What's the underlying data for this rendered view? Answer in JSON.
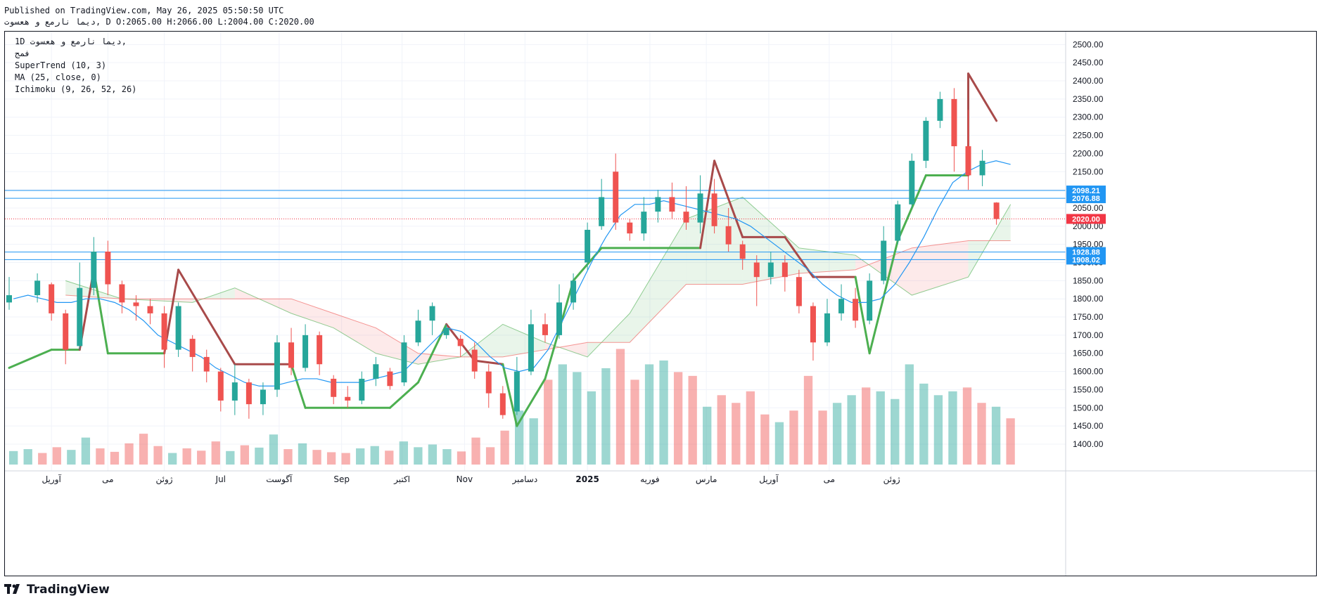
{
  "header": {
    "published_line": "Published on TradingView.com, May 26, 2025 05:50:50 UTC",
    "ohlc_line": "دیما نارمع و هعسوت, D O:2065.00 H:2066.00 L:2004.00 C:2020.00"
  },
  "legend": {
    "symbol_line": "1D دیما نارمع و هعسوت,",
    "exchange": "فمج",
    "indicators": [
      "SuperTrend (10, 3)",
      "MA (25, close, 0)",
      "Ichimoku (9, 26, 52, 26)"
    ]
  },
  "brand": {
    "name": "TradingView",
    "icon": "tradingview-logo-icon"
  },
  "colors": {
    "up": "#26a69a",
    "down": "#ef5350",
    "supertrend_up": "#4caf50",
    "supertrend_down": "#a84a4a",
    "ma": "#2196f3",
    "hline": "#2196f3",
    "last_price": "#f23645",
    "cloud_green": "#4caf50",
    "cloud_red": "#ef5350"
  },
  "chart_data": {
    "type": "candlestick",
    "title": "",
    "ylim": [
      1340,
      2520
    ],
    "y_ticks": [
      1400,
      1450,
      1500,
      1550,
      1600,
      1650,
      1700,
      1750,
      1800,
      1850,
      1900,
      1950,
      2000,
      2050,
      2100,
      2150,
      2200,
      2250,
      2300,
      2350,
      2400,
      2450,
      2500
    ],
    "x_ticks": [
      "آوریل",
      "می",
      "ژوئن",
      "Jul",
      "آگوست",
      "Sep",
      "اکتبر",
      "Nov",
      "دسامبر",
      "2025",
      "فوریه",
      "مارس",
      "آوریل",
      "می",
      "ژوئن"
    ],
    "horizontal_lines": [
      2098.21,
      2076.88,
      1928.88,
      1908.02
    ],
    "price_labels": [
      "2098.21",
      "2076.88",
      "1928.88",
      "1908.02"
    ],
    "last_price": 2020,
    "last_price_label": "2020.00",
    "candles": [
      {
        "x": "2024-03-20",
        "o": 1790,
        "c": 1810,
        "h": 1860,
        "l": 1770
      },
      {
        "x": "2024-04-03",
        "o": 1810,
        "c": 1850,
        "h": 1870,
        "l": 1790
      },
      {
        "x": "2024-04-10",
        "o": 1840,
        "c": 1760,
        "h": 1845,
        "l": 1740
      },
      {
        "x": "2024-04-17",
        "o": 1760,
        "c": 1660,
        "h": 1770,
        "l": 1620
      },
      {
        "x": "2024-04-24",
        "o": 1670,
        "c": 1830,
        "h": 1900,
        "l": 1660
      },
      {
        "x": "2024-05-01",
        "o": 1830,
        "c": 1930,
        "h": 1970,
        "l": 1810
      },
      {
        "x": "2024-05-08",
        "o": 1930,
        "c": 1840,
        "h": 1960,
        "l": 1810
      },
      {
        "x": "2024-05-15",
        "o": 1840,
        "c": 1790,
        "h": 1850,
        "l": 1760
      },
      {
        "x": "2024-05-22",
        "o": 1790,
        "c": 1780,
        "h": 1810,
        "l": 1740
      },
      {
        "x": "2024-05-29",
        "o": 1780,
        "c": 1760,
        "h": 1800,
        "l": 1730
      },
      {
        "x": "2024-06-05",
        "o": 1760,
        "c": 1660,
        "h": 1780,
        "l": 1610
      },
      {
        "x": "2024-06-12",
        "o": 1660,
        "c": 1780,
        "h": 1790,
        "l": 1640
      },
      {
        "x": "2024-06-19",
        "o": 1690,
        "c": 1640,
        "h": 1700,
        "l": 1600
      },
      {
        "x": "2024-06-26",
        "o": 1640,
        "c": 1600,
        "h": 1660,
        "l": 1570
      },
      {
        "x": "2024-07-03",
        "o": 1600,
        "c": 1520,
        "h": 1610,
        "l": 1490
      },
      {
        "x": "2024-07-10",
        "o": 1520,
        "c": 1570,
        "h": 1620,
        "l": 1480
      },
      {
        "x": "2024-07-17",
        "o": 1570,
        "c": 1510,
        "h": 1580,
        "l": 1470
      },
      {
        "x": "2024-07-24",
        "o": 1510,
        "c": 1550,
        "h": 1570,
        "l": 1480
      },
      {
        "x": "2024-07-31",
        "o": 1550,
        "c": 1680,
        "h": 1700,
        "l": 1530
      },
      {
        "x": "2024-08-07",
        "o": 1680,
        "c": 1610,
        "h": 1720,
        "l": 1590
      },
      {
        "x": "2024-08-14",
        "o": 1610,
        "c": 1700,
        "h": 1730,
        "l": 1600
      },
      {
        "x": "2024-08-21",
        "o": 1700,
        "c": 1620,
        "h": 1710,
        "l": 1590
      },
      {
        "x": "2024-08-28",
        "o": 1580,
        "c": 1530,
        "h": 1590,
        "l": 1510
      },
      {
        "x": "2024-09-04",
        "o": 1530,
        "c": 1520,
        "h": 1560,
        "l": 1500
      },
      {
        "x": "2024-09-11",
        "o": 1520,
        "c": 1580,
        "h": 1600,
        "l": 1510
      },
      {
        "x": "2024-09-18",
        "o": 1580,
        "c": 1620,
        "h": 1640,
        "l": 1560
      },
      {
        "x": "2024-09-25",
        "o": 1600,
        "c": 1560,
        "h": 1610,
        "l": 1550
      },
      {
        "x": "2024-10-02",
        "o": 1570,
        "c": 1680,
        "h": 1700,
        "l": 1560
      },
      {
        "x": "2024-10-09",
        "o": 1680,
        "c": 1740,
        "h": 1770,
        "l": 1670
      },
      {
        "x": "2024-10-16",
        "o": 1740,
        "c": 1780,
        "h": 1790,
        "l": 1700
      },
      {
        "x": "2024-10-23",
        "o": 1700,
        "c": 1720,
        "h": 1730,
        "l": 1690
      },
      {
        "x": "2024-10-30",
        "o": 1690,
        "c": 1670,
        "h": 1700,
        "l": 1640
      },
      {
        "x": "2024-11-06",
        "o": 1660,
        "c": 1600,
        "h": 1680,
        "l": 1580
      },
      {
        "x": "2024-11-13",
        "o": 1600,
        "c": 1540,
        "h": 1620,
        "l": 1500
      },
      {
        "x": "2024-11-20",
        "o": 1540,
        "c": 1480,
        "h": 1560,
        "l": 1470
      },
      {
        "x": "2024-11-27",
        "o": 1490,
        "c": 1600,
        "h": 1640,
        "l": 1480
      },
      {
        "x": "2024-12-04",
        "o": 1600,
        "c": 1730,
        "h": 1770,
        "l": 1590
      },
      {
        "x": "2024-12-11",
        "o": 1730,
        "c": 1700,
        "h": 1760,
        "l": 1680
      },
      {
        "x": "2024-12-18",
        "o": 1700,
        "c": 1790,
        "h": 1840,
        "l": 1690
      },
      {
        "x": "2024-12-25",
        "o": 1790,
        "c": 1850,
        "h": 1870,
        "l": 1770
      },
      {
        "x": "2025-01-01",
        "o": 1900,
        "c": 1990,
        "h": 2010,
        "l": 1880
      },
      {
        "x": "2025-01-08",
        "o": 2000,
        "c": 2080,
        "h": 2130,
        "l": 1990
      },
      {
        "x": "2025-01-15",
        "o": 2150,
        "c": 2010,
        "h": 2200,
        "l": 1990
      },
      {
        "x": "2025-01-22",
        "o": 2010,
        "c": 1980,
        "h": 2020,
        "l": 1960
      },
      {
        "x": "2025-01-29",
        "o": 1980,
        "c": 2040,
        "h": 2080,
        "l": 1960
      },
      {
        "x": "2025-02-05",
        "o": 2040,
        "c": 2080,
        "h": 2100,
        "l": 2010
      },
      {
        "x": "2025-02-12",
        "o": 2080,
        "c": 2040,
        "h": 2120,
        "l": 2020
      },
      {
        "x": "2025-02-19",
        "o": 2040,
        "c": 2010,
        "h": 2110,
        "l": 1990
      },
      {
        "x": "2025-02-26",
        "o": 2010,
        "c": 2090,
        "h": 2140,
        "l": 1980
      },
      {
        "x": "2025-03-05",
        "o": 2090,
        "c": 2000,
        "h": 2130,
        "l": 1980
      },
      {
        "x": "2025-03-12",
        "o": 2000,
        "c": 1950,
        "h": 2050,
        "l": 1930
      },
      {
        "x": "2025-03-19",
        "o": 1950,
        "c": 1910,
        "h": 1960,
        "l": 1880
      },
      {
        "x": "2025-03-26",
        "o": 1900,
        "c": 1860,
        "h": 1920,
        "l": 1780
      },
      {
        "x": "2025-04-02",
        "o": 1860,
        "c": 1900,
        "h": 1930,
        "l": 1840
      },
      {
        "x": "2025-04-09",
        "o": 1900,
        "c": 1860,
        "h": 1920,
        "l": 1820
      },
      {
        "x": "2025-04-16",
        "o": 1860,
        "c": 1780,
        "h": 1880,
        "l": 1760
      },
      {
        "x": "2025-04-23",
        "o": 1780,
        "c": 1680,
        "h": 1790,
        "l": 1630
      },
      {
        "x": "2025-04-30",
        "o": 1680,
        "c": 1760,
        "h": 1800,
        "l": 1670
      },
      {
        "x": "2025-05-07",
        "o": 1760,
        "c": 1800,
        "h": 1840,
        "l": 1740
      },
      {
        "x": "2025-05-14",
        "o": 1800,
        "c": 1740,
        "h": 1830,
        "l": 1720
      },
      {
        "x": "2025-05-21",
        "o": 1740,
        "c": 1850,
        "h": 1870,
        "l": 1730
      },
      {
        "x": "2025-05-28",
        "o": 1850,
        "c": 1960,
        "h": 2000,
        "l": 1840
      },
      {
        "x": "2025-06-04",
        "o": 1960,
        "c": 2060,
        "h": 2070,
        "l": 1950
      },
      {
        "x": "2025-06-11",
        "o": 2060,
        "c": 2180,
        "h": 2200,
        "l": 2050
      },
      {
        "x": "2025-06-18",
        "o": 2180,
        "c": 2290,
        "h": 2300,
        "l": 2160
      },
      {
        "x": "2025-06-25",
        "o": 2290,
        "c": 2350,
        "h": 2370,
        "l": 2270
      },
      {
        "x": "2025-07-02",
        "o": 2350,
        "c": 2220,
        "h": 2380,
        "l": 2150
      },
      {
        "x": "2025-07-09",
        "o": 2220,
        "c": 2140,
        "h": 2320,
        "l": 2100
      },
      {
        "x": "2025-07-16",
        "o": 2140,
        "c": 2180,
        "h": 2210,
        "l": 2110
      },
      {
        "x": "2025-07-23",
        "o": 2065,
        "c": 2020,
        "h": 2066,
        "l": 2004
      }
    ],
    "ma": [
      1800,
      1810,
      1800,
      1790,
      1790,
      1800,
      1800,
      1790,
      1770,
      1740,
      1700,
      1680,
      1660,
      1640,
      1610,
      1590,
      1570,
      1560,
      1560,
      1570,
      1580,
      1580,
      1570,
      1570,
      1570,
      1580,
      1590,
      1600,
      1640,
      1680,
      1720,
      1710,
      1680,
      1640,
      1610,
      1600,
      1610,
      1660,
      1740,
      1820,
      1900,
      1970,
      2030,
      2060,
      2060,
      2070,
      2060,
      2050,
      2040,
      2030,
      2020,
      2000,
      1970,
      1940,
      1910,
      1880,
      1840,
      1810,
      1790,
      1790,
      1800,
      1840,
      1900,
      1970,
      2050,
      2120,
      2150,
      2170,
      2180,
      2170
    ],
    "supertrend": [
      {
        "x": "2024-03-20",
        "v": 1610,
        "dir": "up"
      },
      {
        "x": "2024-04-10",
        "v": 1660,
        "dir": "up"
      },
      {
        "x": "2024-04-24",
        "v": 1660,
        "dir": "up"
      },
      {
        "x": "2024-05-01",
        "v": 1880,
        "dir": "down"
      },
      {
        "x": "2024-05-08",
        "v": 1650,
        "dir": "up"
      },
      {
        "x": "2024-06-05",
        "v": 1650,
        "dir": "up"
      },
      {
        "x": "2024-06-12",
        "v": 1880,
        "dir": "down"
      },
      {
        "x": "2024-07-10",
        "v": 1620,
        "dir": "down"
      },
      {
        "x": "2024-08-07",
        "v": 1620,
        "dir": "down"
      },
      {
        "x": "2024-08-14",
        "v": 1500,
        "dir": "up"
      },
      {
        "x": "2024-09-25",
        "v": 1500,
        "dir": "up"
      },
      {
        "x": "2024-10-09",
        "v": 1570,
        "dir": "up"
      },
      {
        "x": "2024-10-23",
        "v": 1730,
        "dir": "up"
      },
      {
        "x": "2024-11-06",
        "v": 1630,
        "dir": "down"
      },
      {
        "x": "2024-11-20",
        "v": 1620,
        "dir": "down"
      },
      {
        "x": "2024-11-27",
        "v": 1450,
        "dir": "up"
      },
      {
        "x": "2024-12-11",
        "v": 1580,
        "dir": "up"
      },
      {
        "x": "2024-12-25",
        "v": 1850,
        "dir": "up"
      },
      {
        "x": "2025-01-08",
        "v": 1940,
        "dir": "up"
      },
      {
        "x": "2025-02-26",
        "v": 1940,
        "dir": "up"
      },
      {
        "x": "2025-03-05",
        "v": 2180,
        "dir": "down"
      },
      {
        "x": "2025-03-19",
        "v": 1970,
        "dir": "down"
      },
      {
        "x": "2025-04-09",
        "v": 1970,
        "dir": "down"
      },
      {
        "x": "2025-04-23",
        "v": 1860,
        "dir": "down"
      },
      {
        "x": "2025-05-14",
        "v": 1860,
        "dir": "down"
      },
      {
        "x": "2025-05-21",
        "v": 1650,
        "dir": "up"
      },
      {
        "x": "2025-06-04",
        "v": 1960,
        "dir": "up"
      },
      {
        "x": "2025-06-18",
        "v": 2140,
        "dir": "up"
      },
      {
        "x": "2025-07-09",
        "v": 2140,
        "dir": "up"
      },
      {
        "x": "2025-07-09",
        "v": 2420,
        "dir": "down"
      },
      {
        "x": "2025-07-23",
        "v": 2290,
        "dir": "down"
      }
    ],
    "ichimoku_cloud": [
      {
        "x": "2024-04-17",
        "a": 1850,
        "b": 1810
      },
      {
        "x": "2024-05-15",
        "a": 1800,
        "b": 1800
      },
      {
        "x": "2024-06-19",
        "a": 1790,
        "b": 1800
      },
      {
        "x": "2024-07-10",
        "a": 1830,
        "b": 1800
      },
      {
        "x": "2024-08-07",
        "a": 1760,
        "b": 1800
      },
      {
        "x": "2024-08-28",
        "a": 1720,
        "b": 1760
      },
      {
        "x": "2024-09-18",
        "a": 1650,
        "b": 1720
      },
      {
        "x": "2024-10-09",
        "a": 1620,
        "b": 1650
      },
      {
        "x": "2024-10-30",
        "a": 1640,
        "b": 1640
      },
      {
        "x": "2024-11-20",
        "a": 1730,
        "b": 1640
      },
      {
        "x": "2024-12-11",
        "a": 1680,
        "b": 1660
      },
      {
        "x": "2025-01-01",
        "a": 1640,
        "b": 1680
      },
      {
        "x": "2025-01-22",
        "a": 1760,
        "b": 1680
      },
      {
        "x": "2025-02-19",
        "a": 2020,
        "b": 1840
      },
      {
        "x": "2025-03-19",
        "a": 2080,
        "b": 1840
      },
      {
        "x": "2025-04-16",
        "a": 1940,
        "b": 1870
      },
      {
        "x": "2025-05-14",
        "a": 1920,
        "b": 1880
      },
      {
        "x": "2025-06-11",
        "a": 1810,
        "b": 1940
      },
      {
        "x": "2025-07-09",
        "a": 1860,
        "b": 1960
      },
      {
        "x": "2025-07-30",
        "a": 2060,
        "b": 1960
      }
    ],
    "volume": [
      35,
      40,
      30,
      45,
      38,
      70,
      42,
      33,
      55,
      80,
      48,
      30,
      42,
      36,
      60,
      35,
      50,
      44,
      78,
      40,
      55,
      38,
      32,
      30,
      42,
      48,
      36,
      60,
      45,
      52,
      40,
      34,
      70,
      45,
      88,
      140,
      120,
      220,
      260,
      240,
      190,
      250,
      300,
      220,
      260,
      270,
      240,
      230,
      150,
      180,
      160,
      190,
      130,
      110,
      140,
      230,
      140,
      160,
      180,
      200,
      190,
      170,
      260,
      210,
      180,
      190,
      200,
      160,
      150,
      120
    ],
    "volume_ylim": [
      0,
      310
    ]
  }
}
